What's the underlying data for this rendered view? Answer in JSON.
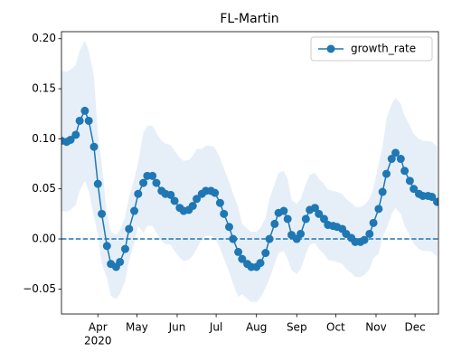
{
  "chart_data": {
    "type": "line",
    "title": "FL-Martin",
    "x": [
      "2020-03-04",
      "2020-03-08",
      "2020-03-11",
      "2020-03-15",
      "2020-03-18",
      "2020-03-22",
      "2020-03-25",
      "2020-03-29",
      "2020-04-01",
      "2020-04-04",
      "2020-04-08",
      "2020-04-11",
      "2020-04-15",
      "2020-04-18",
      "2020-04-22",
      "2020-04-25",
      "2020-04-29",
      "2020-05-02",
      "2020-05-06",
      "2020-05-09",
      "2020-05-13",
      "2020-05-16",
      "2020-05-20",
      "2020-05-23",
      "2020-05-27",
      "2020-05-30",
      "2020-06-03",
      "2020-06-06",
      "2020-06-10",
      "2020-06-13",
      "2020-06-16",
      "2020-06-20",
      "2020-06-23",
      "2020-06-27",
      "2020-06-30",
      "2020-07-04",
      "2020-07-07",
      "2020-07-11",
      "2020-07-14",
      "2020-07-18",
      "2020-07-21",
      "2020-07-25",
      "2020-07-28",
      "2020-08-01",
      "2020-08-04",
      "2020-08-08",
      "2020-08-11",
      "2020-08-15",
      "2020-08-18",
      "2020-08-22",
      "2020-08-25",
      "2020-08-28",
      "2020-09-01",
      "2020-09-04",
      "2020-09-08",
      "2020-09-11",
      "2020-09-15",
      "2020-09-18",
      "2020-09-22",
      "2020-09-25",
      "2020-09-29",
      "2020-10-02",
      "2020-10-06",
      "2020-10-09",
      "2020-10-13",
      "2020-10-16",
      "2020-10-20",
      "2020-10-23",
      "2020-10-27",
      "2020-10-30",
      "2020-11-03",
      "2020-11-06",
      "2020-11-09",
      "2020-11-13",
      "2020-11-16",
      "2020-11-20",
      "2020-11-23",
      "2020-11-27",
      "2020-11-30",
      "2020-12-04",
      "2020-12-07",
      "2020-12-11",
      "2020-12-14",
      "2020-12-18"
    ],
    "series": [
      {
        "name": "growth_rate",
        "color": "#1f77b4",
        "values": [
          0.098,
          0.097,
          0.099,
          0.104,
          0.118,
          0.128,
          0.118,
          0.092,
          0.055,
          0.025,
          -0.007,
          -0.025,
          -0.028,
          -0.023,
          -0.01,
          0.01,
          0.028,
          0.045,
          0.056,
          0.063,
          0.063,
          0.056,
          0.048,
          0.045,
          0.044,
          0.038,
          0.031,
          0.028,
          0.029,
          0.033,
          0.04,
          0.045,
          0.048,
          0.048,
          0.046,
          0.036,
          0.025,
          0.012,
          0.0,
          -0.013,
          -0.02,
          -0.025,
          -0.028,
          -0.028,
          -0.024,
          -0.014,
          0.0,
          0.015,
          0.026,
          0.028,
          0.02,
          0.004,
          0.0,
          0.005,
          0.02,
          0.029,
          0.031,
          0.025,
          0.02,
          0.014,
          0.013,
          0.012,
          0.01,
          0.005,
          0.001,
          -0.003,
          -0.003,
          -0.001,
          0.005,
          0.016,
          0.03,
          0.047,
          0.065,
          0.08,
          0.086,
          0.08,
          0.068,
          0.058,
          0.05,
          0.045,
          0.043,
          0.043,
          0.042,
          0.037
        ]
      }
    ],
    "band": {
      "color": "#e6eff8",
      "upper": [
        0.168,
        0.167,
        0.169,
        0.174,
        0.188,
        0.198,
        0.188,
        0.162,
        0.105,
        0.075,
        0.025,
        0.007,
        0.004,
        0.009,
        0.022,
        0.042,
        0.06,
        0.077,
        0.106,
        0.113,
        0.113,
        0.106,
        0.098,
        0.095,
        0.094,
        0.088,
        0.081,
        0.078,
        0.079,
        0.083,
        0.09,
        0.09,
        0.093,
        0.093,
        0.091,
        0.081,
        0.07,
        0.057,
        0.045,
        0.032,
        0.015,
        0.01,
        0.007,
        0.007,
        0.011,
        0.021,
        0.04,
        0.055,
        0.066,
        0.068,
        0.06,
        0.039,
        0.035,
        0.04,
        0.055,
        0.064,
        0.066,
        0.06,
        0.055,
        0.049,
        0.048,
        0.047,
        0.045,
        0.04,
        0.036,
        0.032,
        0.032,
        0.034,
        0.04,
        0.051,
        0.075,
        0.092,
        0.12,
        0.135,
        0.141,
        0.135,
        0.123,
        0.113,
        0.105,
        0.1,
        0.098,
        0.098,
        0.097,
        0.092
      ],
      "lower": [
        0.028,
        0.027,
        0.029,
        0.034,
        0.048,
        0.058,
        0.048,
        0.022,
        0.005,
        -0.025,
        -0.039,
        -0.057,
        -0.06,
        -0.055,
        -0.042,
        -0.022,
        -0.004,
        0.013,
        0.006,
        0.013,
        0.013,
        0.006,
        -0.002,
        -0.005,
        -0.006,
        -0.012,
        -0.019,
        -0.022,
        -0.021,
        -0.017,
        -0.01,
        0.0,
        0.003,
        0.003,
        0.001,
        -0.009,
        -0.02,
        -0.033,
        -0.045,
        -0.058,
        -0.055,
        -0.06,
        -0.063,
        -0.063,
        -0.059,
        -0.049,
        -0.04,
        -0.025,
        -0.014,
        -0.012,
        -0.02,
        -0.031,
        -0.035,
        -0.03,
        -0.015,
        -0.006,
        -0.004,
        -0.01,
        -0.015,
        -0.021,
        -0.022,
        -0.023,
        -0.025,
        -0.03,
        -0.034,
        -0.038,
        -0.038,
        -0.036,
        -0.03,
        -0.019,
        -0.015,
        0.002,
        0.01,
        0.025,
        0.031,
        0.025,
        0.013,
        0.003,
        -0.005,
        -0.01,
        -0.012,
        -0.012,
        -0.013,
        -0.018
      ]
    },
    "hline": 0,
    "xlim": [
      "2020-03-04",
      "2020-12-19"
    ],
    "xticks": [
      {
        "value": "2020-04-01",
        "label": "Apr"
      },
      {
        "value": "2020-05-01",
        "label": "May"
      },
      {
        "value": "2020-06-01",
        "label": "Jun"
      },
      {
        "value": "2020-07-01",
        "label": "Jul"
      },
      {
        "value": "2020-08-01",
        "label": "Aug"
      },
      {
        "value": "2020-09-01",
        "label": "Sep"
      },
      {
        "value": "2020-10-01",
        "label": "Oct"
      },
      {
        "value": "2020-11-01",
        "label": "Nov"
      },
      {
        "value": "2020-12-01",
        "label": "Dec"
      }
    ],
    "x_year_label": "2020",
    "ylim": [
      -0.075,
      0.207
    ],
    "yticks": [
      {
        "value": -0.05,
        "label": "−0.05"
      },
      {
        "value": 0,
        "label": "0.00"
      },
      0.05,
      {
        "value": 0.1,
        "label": "0.10"
      },
      0.15,
      {
        "value": 0.2,
        "label": "0.20"
      }
    ],
    "legend": "upper right"
  }
}
